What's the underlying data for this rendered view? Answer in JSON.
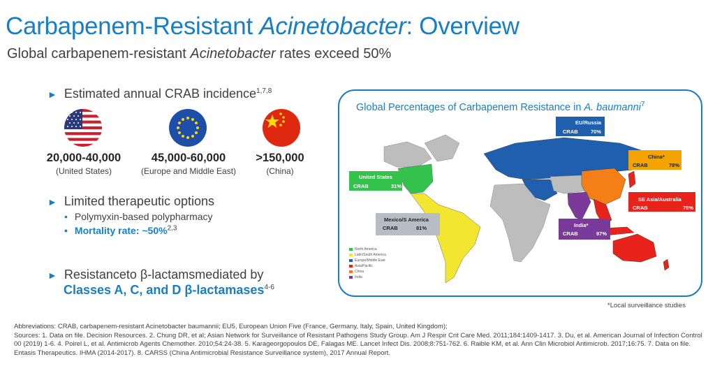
{
  "header": {
    "title_part1": "Carbapenem-Resistant ",
    "title_italic": "Acinetobacter",
    "title_part2": ": Overview",
    "subtitle_part1": "Global carbapenem-resistant ",
    "subtitle_italic": "Acinetobacter",
    "subtitle_part2": " rates exceed 50%"
  },
  "incidence": {
    "heading": "Estimated annual CRAB incidence",
    "heading_refs": "1,7,8",
    "stats": [
      {
        "value": "20,000-40,000",
        "label": "(United States)",
        "icon": "us-flag-icon"
      },
      {
        "value": "45,000-60,000",
        "label": "(Europe and Middle East)",
        "icon": "eu-flag-icon"
      },
      {
        "value": ">150,000",
        "label": "(China)",
        "icon": "china-flag-icon"
      }
    ]
  },
  "therapeutic": {
    "heading": "Limited therapeutic options",
    "items": [
      "Polymyxin-based polypharmacy",
      "Mortality rate: ~50%"
    ],
    "mortality_refs": "2,3"
  },
  "resistance": {
    "line1": "Resistanceto β-lactamsmediated by",
    "line2": "Classes A, C, and D β-lactamases",
    "refs": "4-6"
  },
  "map": {
    "title_part1": "Global Percentages of Carbapenem Resistance in ",
    "title_italic": "A. baumanni",
    "title_ref": "7",
    "regions": [
      {
        "name": "EU/Russia",
        "label": "CRAB",
        "value": "70%",
        "color": "#1f5fad"
      },
      {
        "name": "China*",
        "label": "CRAB",
        "value": "78%",
        "color": "#f4a300"
      },
      {
        "name": "United States",
        "label": "CRAB",
        "value": "31%",
        "color": "#33c24b"
      },
      {
        "name": "SE Asia/Australia",
        "label": "CRAB",
        "value": "75%",
        "color": "#e8231c"
      },
      {
        "name": "Mexico/S America",
        "label": "CRAB",
        "value": "81%",
        "color": "#b8bcc6"
      },
      {
        "name": "India*",
        "label": "CRAB",
        "value": "97%",
        "color": "#7a3a9a"
      }
    ],
    "legend": [
      {
        "label": "North America",
        "color": "#33c24b"
      },
      {
        "label": "Latin/South America",
        "color": "#f2e631"
      },
      {
        "label": "Europe/Middle East",
        "color": "#1f5fad"
      },
      {
        "label": "Asia/Pacific",
        "color": "#e8231c"
      },
      {
        "label": "China",
        "color": "#f57f17"
      },
      {
        "label": "India",
        "color": "#7a3a9a"
      }
    ]
  },
  "footnote": "*Local surveillance studies",
  "references": {
    "abbreviations": "Abbreviations: CRAB, carbapenem-resistant Acinetobacter baumannii; EU5, European Union Five (France, Germany, Italy, Spain, United Kingdom);",
    "sources": "Sources: 1. Data on file. Decision Resources. 2. Chung DR, et al; Asian Network for Surveillance of Resistant Pathogens Study Group. Am J Respir Crit Care Med. 2011;184:1409-1417. 3. Du, et al. American Journal of Infection Control 00 (2019) 1-6. 4. Poirel L, et al. Antimicrob Agents Chemother. 2010;54:24-38. 5. Karageorgopoulos DE, Falagas ME. Lancet Infect Dis. 2008;8:751-762. 6. Raible KM, et al. Ann Clin Microbiol Antimicrob. 2017;16:75. 7. Data on file. Entasis Therapeutics. IHMA (2014-2017). 8. CARSS (China Antimicrobial Resistance Surveillance system), 2017 Annual Report."
  }
}
